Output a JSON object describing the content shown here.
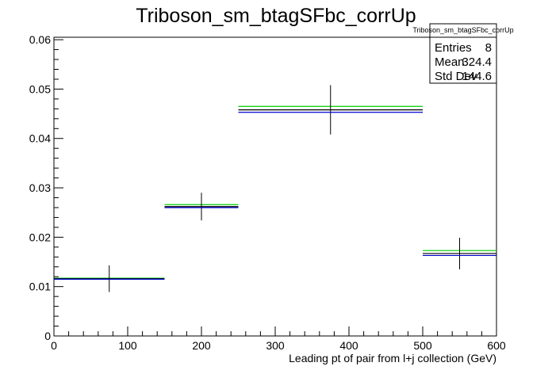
{
  "chart_data": {
    "type": "histogram",
    "title": "Triboson_sm_btagSFbc_corrUp",
    "xlabel": "Leading pt of pair from l+j collection (GeV)",
    "ylabel": "",
    "xlim": [
      0,
      600
    ],
    "ylim": [
      0,
      0.0605
    ],
    "x_ticks": [
      0,
      100,
      200,
      300,
      400,
      500,
      600
    ],
    "x_tick_labels": [
      "0",
      "100",
      "200",
      "300",
      "400",
      "500",
      "600"
    ],
    "y_ticks": [
      0,
      0.01,
      0.02,
      0.03,
      0.04,
      0.05,
      0.06
    ],
    "y_tick_labels": [
      "0",
      "0.01",
      "0.02",
      "0.03",
      "0.04",
      "0.05",
      "0.06"
    ],
    "grid": false,
    "bins": [
      {
        "x_low": 0,
        "x_high": 150,
        "x_center": 75
      },
      {
        "x_low": 150,
        "x_high": 250,
        "x_center": 200
      },
      {
        "x_low": 250,
        "x_high": 500,
        "x_center": 375
      },
      {
        "x_low": 500,
        "x_high": 600,
        "x_center": 550
      }
    ],
    "series": [
      {
        "color": "#00cc00",
        "values": [
          0.0117,
          0.0266,
          0.0465,
          0.0173
        ]
      },
      {
        "color": "#000000",
        "values": [
          0.0116,
          0.0262,
          0.0458,
          0.0167
        ],
        "errors": [
          0.0027,
          0.0028,
          0.005,
          0.0032
        ]
      },
      {
        "color": "#0000cc",
        "values": [
          0.0115,
          0.026,
          0.0453,
          0.0163
        ]
      }
    ],
    "stats_box": {
      "title": "Triboson_sm_btagSFbc_corrUp",
      "rows": [
        {
          "label": "Entries",
          "value": "8"
        },
        {
          "label": "Mean",
          "value": "324.4"
        },
        {
          "label": "Std Dev",
          "value": "144.6"
        }
      ]
    }
  }
}
